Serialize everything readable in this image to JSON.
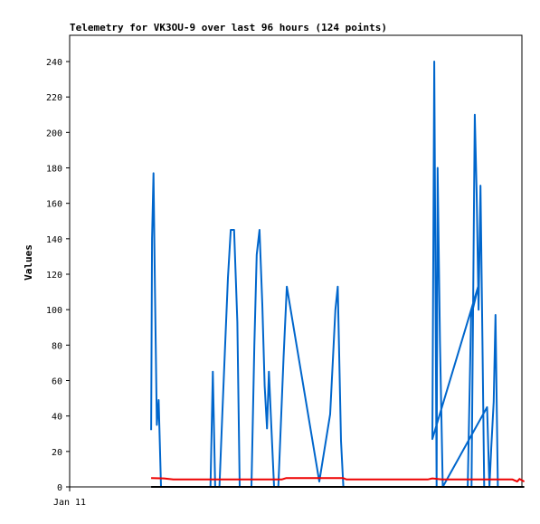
{
  "chart_data": {
    "type": "line",
    "title": "Telemetry for VK3OU-9 over last 96 hours (124 points)",
    "xlabel": "",
    "ylabel": "Values",
    "ylim": [
      0,
      255
    ],
    "xlim": [
      0,
      96
    ],
    "yticks": [
      0,
      20,
      40,
      60,
      80,
      100,
      120,
      140,
      160,
      180,
      200,
      220,
      240
    ],
    "xticks": [
      {
        "x": 0,
        "label": "Jan 11"
      }
    ],
    "grid": false,
    "legend": "none",
    "series": [
      {
        "color": "#0066cc",
        "points": [
          [
            17.3,
            32
          ],
          [
            17.5,
            140
          ],
          [
            17.8,
            177
          ],
          [
            18.1,
            112
          ],
          [
            18.5,
            35
          ],
          [
            18.9,
            49
          ],
          [
            19.4,
            0
          ],
          [
            29.9,
            0
          ],
          [
            30.4,
            65
          ],
          [
            30.9,
            0
          ],
          [
            31.8,
            0
          ],
          [
            32.4,
            40
          ],
          [
            33.0,
            80
          ],
          [
            33.6,
            118
          ],
          [
            34.2,
            145
          ],
          [
            34.9,
            145
          ],
          [
            35.6,
            93
          ],
          [
            36.1,
            0
          ],
          [
            38.6,
            0
          ],
          [
            39.2,
            80
          ],
          [
            39.7,
            131
          ],
          [
            40.3,
            145
          ],
          [
            40.9,
            103
          ],
          [
            41.4,
            57
          ],
          [
            41.9,
            33
          ],
          [
            42.3,
            65
          ],
          [
            42.8,
            35
          ],
          [
            43.4,
            0
          ],
          [
            44.3,
            0
          ],
          [
            45.4,
            73
          ],
          [
            46.1,
            113
          ],
          [
            53.0,
            3
          ],
          [
            55.3,
            41
          ],
          [
            56.4,
            100
          ],
          [
            56.9,
            113
          ],
          [
            57.6,
            26
          ],
          [
            58.1,
            0
          ],
          [
            84.5,
            0
          ],
          [
            85.2,
            96
          ],
          [
            86.7,
            113
          ],
          [
            77.0,
            27
          ],
          [
            77.4,
            240
          ],
          [
            77.9,
            0
          ],
          [
            78.1,
            180
          ],
          [
            78.6,
            82
          ],
          [
            79.2,
            0
          ],
          [
            88.6,
            45
          ],
          [
            89.1,
            0
          ],
          [
            89.5,
            22
          ],
          [
            90.0,
            48
          ],
          [
            90.4,
            97
          ],
          [
            90.9,
            0
          ],
          [
            85.3,
            0
          ],
          [
            86.0,
            210
          ],
          [
            86.4,
            165
          ],
          [
            86.8,
            100
          ],
          [
            87.2,
            170
          ],
          [
            87.6,
            85
          ],
          [
            88.0,
            0
          ]
        ]
      },
      {
        "color": "#ee0000",
        "points": [
          [
            17.3,
            5
          ],
          [
            20.0,
            4.8
          ],
          [
            22.0,
            4.2
          ],
          [
            45.0,
            4.2
          ],
          [
            46.0,
            5
          ],
          [
            58.0,
            5
          ],
          [
            58.8,
            4.2
          ],
          [
            76.0,
            4.2
          ],
          [
            77.0,
            4.8
          ],
          [
            79.0,
            4.2
          ],
          [
            94.0,
            4.2
          ],
          [
            95.0,
            3
          ],
          [
            95.5,
            4.5
          ],
          [
            96.5,
            3
          ]
        ]
      },
      {
        "color": "#000000",
        "points": [
          [
            17.3,
            0
          ],
          [
            96.5,
            0
          ]
        ]
      }
    ]
  }
}
